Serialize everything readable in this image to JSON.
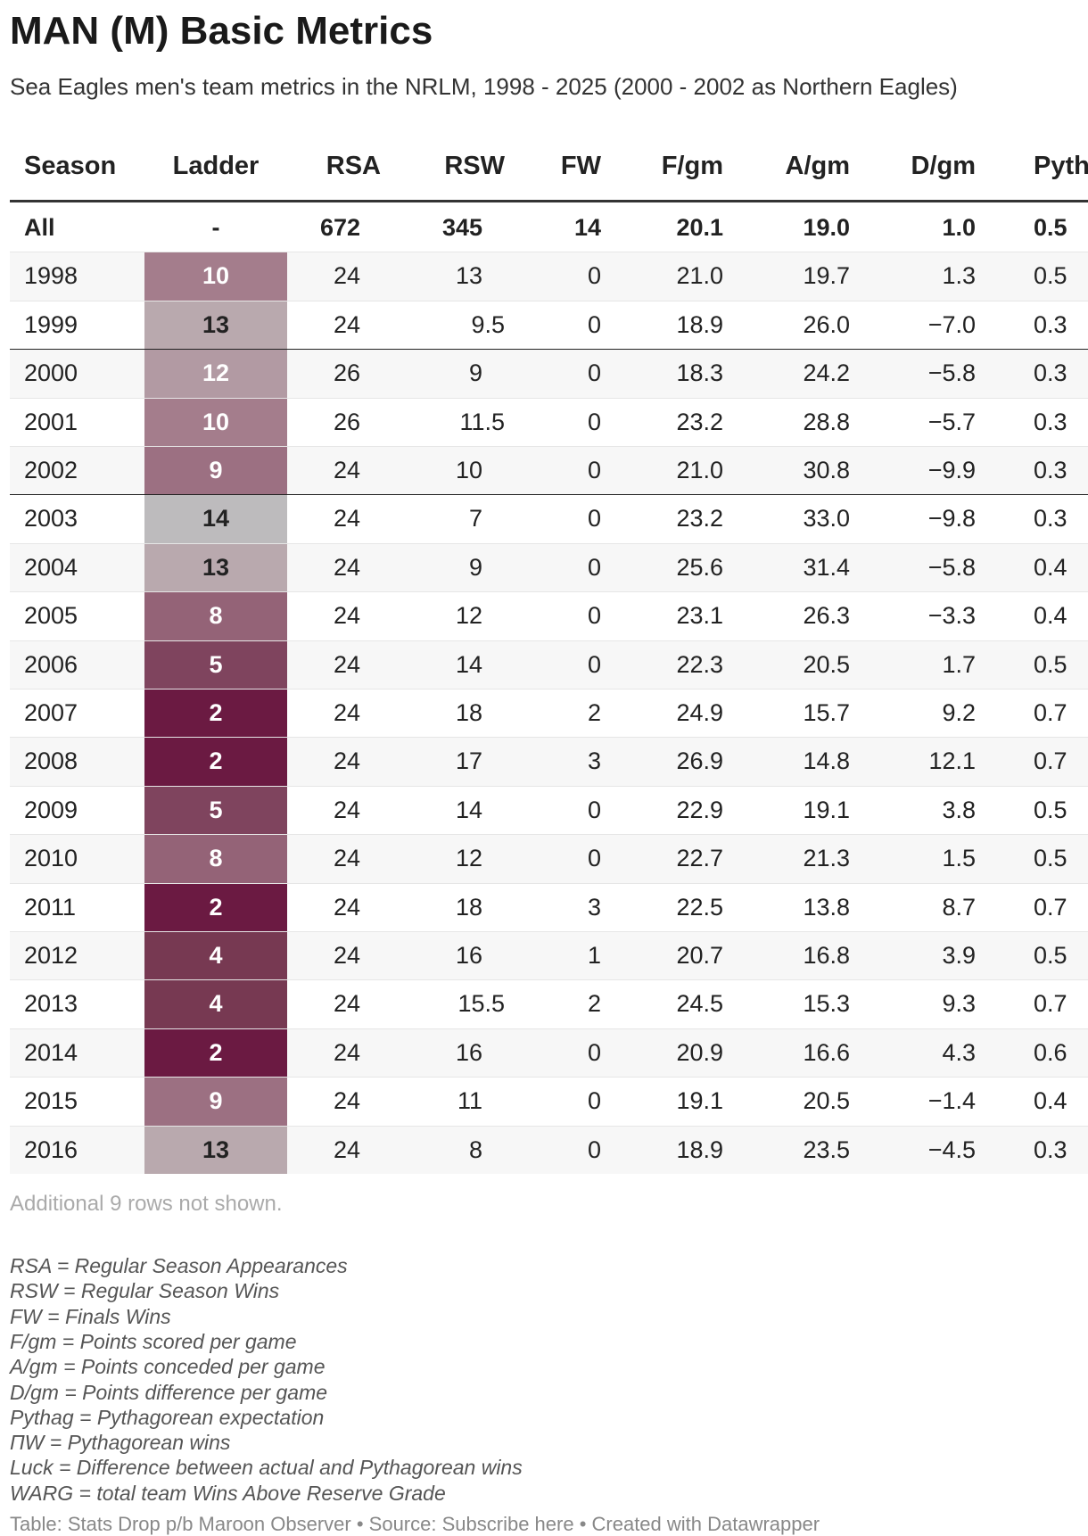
{
  "header": {
    "title": "MAN (M) Basic Metrics",
    "subtitle": "Sea Eagles men's team metrics in the NRLM, 1998 - 2025 (2000 - 2002 as Northern Eagles)"
  },
  "table": {
    "columns": [
      "Season",
      "Ladder",
      "RSA",
      "RSW",
      "FW",
      "F/gm",
      "A/gm",
      "D/gm",
      "Pyth"
    ],
    "rows": [
      [
        "All",
        "-",
        "672",
        "345",
        "14",
        "20.1",
        "19.0",
        "1.0",
        "0.5"
      ],
      [
        "1998",
        "10",
        "24",
        "13",
        "0",
        "21.0",
        "19.7",
        "1.3",
        "0.5"
      ],
      [
        "1999",
        "13",
        "24",
        "9.5",
        "0",
        "18.9",
        "26.0",
        "−7.0",
        "0.3"
      ],
      [
        "2000",
        "12",
        "26",
        "9",
        "0",
        "18.3",
        "24.2",
        "−5.8",
        "0.3"
      ],
      [
        "2001",
        "10",
        "26",
        "11.5",
        "0",
        "23.2",
        "28.8",
        "−5.7",
        "0.3"
      ],
      [
        "2002",
        "9",
        "24",
        "10",
        "0",
        "21.0",
        "30.8",
        "−9.9",
        "0.3"
      ],
      [
        "2003",
        "14",
        "24",
        "7",
        "0",
        "23.2",
        "33.0",
        "−9.8",
        "0.3"
      ],
      [
        "2004",
        "13",
        "24",
        "9",
        "0",
        "25.6",
        "31.4",
        "−5.8",
        "0.4"
      ],
      [
        "2005",
        "8",
        "24",
        "12",
        "0",
        "23.1",
        "26.3",
        "−3.3",
        "0.4"
      ],
      [
        "2006",
        "5",
        "24",
        "14",
        "0",
        "22.3",
        "20.5",
        "1.7",
        "0.5"
      ],
      [
        "2007",
        "2",
        "24",
        "18",
        "2",
        "24.9",
        "15.7",
        "9.2",
        "0.7"
      ],
      [
        "2008",
        "2",
        "24",
        "17",
        "3",
        "26.9",
        "14.8",
        "12.1",
        "0.7"
      ],
      [
        "2009",
        "5",
        "24",
        "14",
        "0",
        "22.9",
        "19.1",
        "3.8",
        "0.5"
      ],
      [
        "2010",
        "8",
        "24",
        "12",
        "0",
        "22.7",
        "21.3",
        "1.5",
        "0.5"
      ],
      [
        "2011",
        "2",
        "24",
        "18",
        "3",
        "22.5",
        "13.8",
        "8.7",
        "0.7"
      ],
      [
        "2012",
        "4",
        "24",
        "16",
        "1",
        "20.7",
        "16.8",
        "3.9",
        "0.5"
      ],
      [
        "2013",
        "4",
        "24",
        "15.5",
        "2",
        "24.5",
        "15.3",
        "9.3",
        "0.7"
      ],
      [
        "2014",
        "2",
        "24",
        "16",
        "0",
        "20.9",
        "16.6",
        "4.3",
        "0.6"
      ],
      [
        "2015",
        "9",
        "24",
        "11",
        "0",
        "19.1",
        "20.5",
        "−1.4",
        "0.4"
      ],
      [
        "2016",
        "13",
        "24",
        "8",
        "0",
        "18.9",
        "23.5",
        "−4.5",
        "0.3"
      ]
    ],
    "ladder_colors": [
      null,
      "#a47d8c",
      "#b9a9ae",
      "#b29aa3",
      "#a47d8c",
      "#9c7082",
      "#bdbbbd",
      "#b9a9ae",
      "#946377",
      "#7f445e",
      "#6b1a42",
      "#6b1a42",
      "#7f445e",
      "#946377",
      "#6b1a42",
      "#773952",
      "#773952",
      "#6b1a42",
      "#9c7082",
      "#b9a9ae"
    ]
  },
  "more_rows": "Additional 9 rows not shown.",
  "notes": [
    "RSA = Regular Season Appearances",
    "RSW = Regular Season Wins",
    "FW = Finals Wins",
    "F/gm = Points scored per game",
    "A/gm = Points conceded per game",
    "D/gm = Points difference per game",
    "Pythag = Pythagorean expectation",
    "ΠW = Pythagorean wins",
    "Luck = Difference between actual and Pythagorean wins",
    "WARG = total team Wins Above Reserve Grade"
  ],
  "footer": {
    "prefix": "Table: Stats Drop p/b Maroon Observer • Source: ",
    "link": "Subscribe here",
    "suffix": " • Created with Datawrapper"
  }
}
